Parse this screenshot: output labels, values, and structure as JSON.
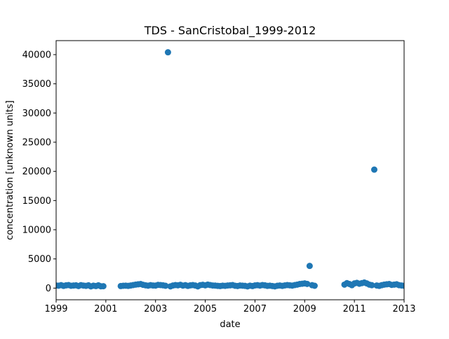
{
  "chart_data": {
    "type": "scatter",
    "title": "TDS - SanCristobal_1999-2012",
    "xlabel": "date",
    "ylabel": "concentration [unknown units]",
    "color": "#1f77b4",
    "x": [
      1999,
      1999.1,
      1999.2,
      1999.3,
      1999.4,
      1999.5,
      1999.6,
      1999.7,
      1999.8,
      1999.9,
      2000,
      2000.1,
      2000.2,
      2000.3,
      2000.4,
      2000.5,
      2000.6,
      2000.7,
      2000.8,
      2000.9,
      2001.6,
      2001.7,
      2001.8,
      2001.9,
      2002,
      2002.1,
      2002.2,
      2002.3,
      2002.4,
      2002.5,
      2002.6,
      2002.7,
      2002.8,
      2002.9,
      2003,
      2003.1,
      2003.2,
      2003.3,
      2003.4,
      2003.5,
      2003.6,
      2003.7,
      2003.8,
      2003.9,
      2004,
      2004.1,
      2004.2,
      2004.3,
      2004.4,
      2004.5,
      2004.6,
      2004.7,
      2004.8,
      2004.9,
      2005,
      2005.1,
      2005.2,
      2005.3,
      2005.4,
      2005.5,
      2005.6,
      2005.7,
      2005.8,
      2005.9,
      2006,
      2006.1,
      2006.2,
      2006.3,
      2006.4,
      2006.5,
      2006.6,
      2006.7,
      2006.8,
      2006.9,
      2007,
      2007.1,
      2007.2,
      2007.3,
      2007.4,
      2007.5,
      2007.6,
      2007.7,
      2007.8,
      2007.9,
      2008,
      2008.1,
      2008.2,
      2008.3,
      2008.4,
      2008.5,
      2008.6,
      2008.7,
      2008.8,
      2008.9,
      2009,
      2009.1,
      2009.2,
      2009.3,
      2009.4,
      2010.6,
      2010.7,
      2010.8,
      2010.9,
      2011,
      2011.1,
      2011.2,
      2011.3,
      2011.4,
      2011.5,
      2011.6,
      2011.7,
      2011.8,
      2011.9,
      2012,
      2012.1,
      2012.2,
      2012.3,
      2012.4,
      2012.5,
      2012.6,
      2012.7,
      2012.8,
      2012.9,
      2013
    ],
    "values": [
      450,
      420,
      500,
      380,
      470,
      520,
      400,
      440,
      480,
      360,
      510,
      430,
      390,
      470,
      300,
      420,
      350,
      480,
      310,
      330,
      350,
      400,
      420,
      380,
      450,
      520,
      600,
      650,
      700,
      560,
      480,
      420,
      500,
      450,
      430,
      550,
      520,
      480,
      400,
      40400,
      300,
      450,
      520,
      480,
      560,
      430,
      500,
      380,
      470,
      520,
      440,
      300,
      510,
      560,
      480,
      600,
      520,
      450,
      430,
      380,
      350,
      420,
      390,
      450,
      480,
      520,
      400,
      360,
      450,
      420,
      380,
      300,
      420,
      350,
      460,
      500,
      430,
      520,
      470,
      380,
      420,
      360,
      300,
      400,
      450,
      380,
      460,
      520,
      480,
      430,
      520,
      600,
      700,
      750,
      800,
      720,
      3800,
      500,
      400,
      600,
      850,
      700,
      500,
      800,
      900,
      750,
      850,
      950,
      800,
      600,
      500,
      20300,
      450,
      380,
      500,
      600,
      650,
      700,
      550,
      600,
      650,
      500,
      450,
      400
    ],
    "xlim": [
      1999,
      2013
    ],
    "xticks": [
      1999,
      2001,
      2003,
      2005,
      2007,
      2009,
      2011,
      2013
    ],
    "ylim": [
      -2000,
      42400
    ],
    "yticks": [
      0,
      5000,
      10000,
      15000,
      20000,
      25000,
      30000,
      35000,
      40000
    ]
  }
}
